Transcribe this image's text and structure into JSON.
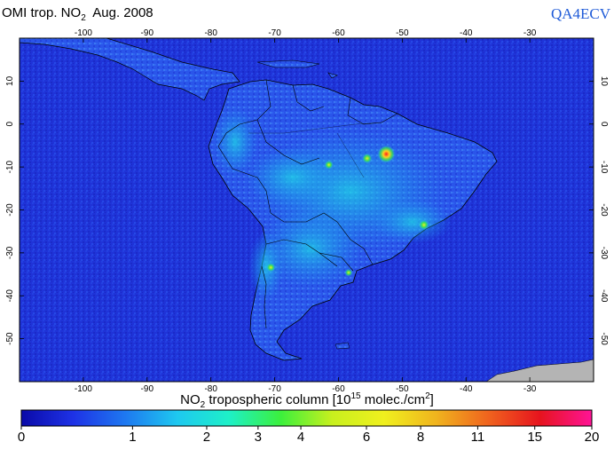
{
  "header": {
    "title_prefix": "OMI trop. NO",
    "title_sub": "2",
    "title_suffix": "  Aug. 2008",
    "brand": "QA4ECV"
  },
  "map": {
    "lon_range": [
      -110,
      -20
    ],
    "lat_range": [
      -60,
      20
    ],
    "lon_ticks": [
      -100,
      -90,
      -80,
      -70,
      -60,
      -50,
      -40,
      -30
    ],
    "lat_ticks": [
      10,
      0,
      -10,
      -20,
      -30,
      -40,
      -50
    ],
    "ocean_color": "#1f33d8",
    "land_base_color": "#2a55ea",
    "coastline_color": "#000000",
    "hotspots": [
      {
        "name": "Mato Grosso fires",
        "lon": -52.5,
        "lat": -7.0,
        "value": 20
      },
      {
        "name": "Para fires",
        "lon": -55.5,
        "lat": -8.0,
        "value": 8
      },
      {
        "name": "Rondonia fires",
        "lon": -61.5,
        "lat": -9.5,
        "value": 6
      },
      {
        "name": "Sao Paulo",
        "lon": -46.6,
        "lat": -23.5,
        "value": 8
      },
      {
        "name": "Santiago",
        "lon": -70.6,
        "lat": -33.4,
        "value": 6
      },
      {
        "name": "Buenos Aires",
        "lon": -58.4,
        "lat": -34.6,
        "value": 4
      }
    ]
  },
  "colorbar": {
    "label_prefix": "NO",
    "label_sub": "2",
    "label_mid": " tropospheric column [10",
    "label_sup": "15",
    "label_mid2": " molec./cm",
    "label_sup2": "2",
    "label_end": "]",
    "ticks": [
      "0",
      "1",
      "2",
      "3",
      "4",
      "6",
      "8",
      "11",
      "15",
      "20"
    ],
    "colors": [
      "#0a0aa8",
      "#1e32e6",
      "#1e78f0",
      "#1ec8f0",
      "#1ef0c8",
      "#3cf03c",
      "#c8f01e",
      "#f0f01e",
      "#f0b41e",
      "#f0641e",
      "#e6141e",
      "#ff1496"
    ]
  }
}
